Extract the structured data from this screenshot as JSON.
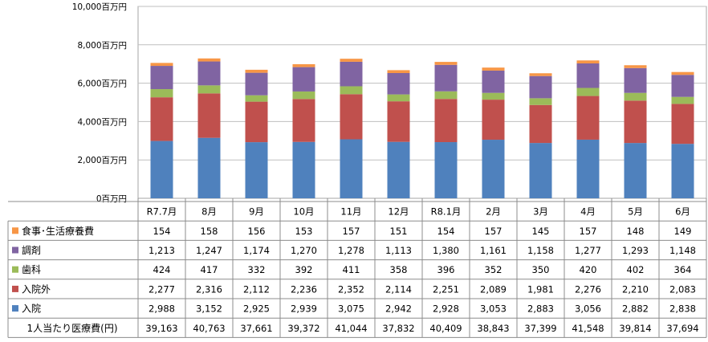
{
  "chart_data": {
    "type": "bar",
    "stacked": true,
    "categories": [
      "R7.7月",
      "8月",
      "9月",
      "10月",
      "11月",
      "12月",
      "R8.1月",
      "2月",
      "3月",
      "4月",
      "5月",
      "6月"
    ],
    "y_unit_suffix": "百万円",
    "y_ticks": [
      "0百万円",
      "2,000百万円",
      "4,000百万円",
      "6,000百万円",
      "8,000百万円",
      "10,000百万円"
    ],
    "ylim": [
      0,
      10000
    ],
    "ytick_step": 2000,
    "grid": "horizontal",
    "series": [
      {
        "name": "入院",
        "color": "#4F81BD",
        "values": [
          2988,
          3152,
          2925,
          2939,
          3075,
          2942,
          2928,
          3053,
          2883,
          3056,
          2882,
          2838
        ],
        "labels": [
          "2,988",
          "3,152",
          "2,925",
          "2,939",
          "3,075",
          "2,942",
          "2,928",
          "3,053",
          "2,883",
          "3,056",
          "2,882",
          "2,838"
        ]
      },
      {
        "name": "入院外",
        "color": "#C0504D",
        "values": [
          2277,
          2316,
          2112,
          2236,
          2352,
          2114,
          2251,
          2089,
          1981,
          2276,
          2210,
          2083
        ],
        "labels": [
          "2,277",
          "2,316",
          "2,112",
          "2,236",
          "2,352",
          "2,114",
          "2,251",
          "2,089",
          "1,981",
          "2,276",
          "2,210",
          "2,083"
        ]
      },
      {
        "name": "歯科",
        "color": "#9BBB59",
        "values": [
          424,
          417,
          332,
          392,
          411,
          358,
          396,
          352,
          350,
          420,
          402,
          364
        ],
        "labels": [
          "424",
          "417",
          "332",
          "392",
          "411",
          "358",
          "396",
          "352",
          "350",
          "420",
          "402",
          "364"
        ]
      },
      {
        "name": "調剤",
        "color": "#8064A2",
        "values": [
          1213,
          1247,
          1174,
          1270,
          1278,
          1113,
          1380,
          1161,
          1158,
          1277,
          1293,
          1148
        ],
        "labels": [
          "1,213",
          "1,247",
          "1,174",
          "1,270",
          "1,278",
          "1,113",
          "1,380",
          "1,161",
          "1,158",
          "1,277",
          "1,293",
          "1,148"
        ]
      },
      {
        "name": "食事･生活療養費",
        "color": "#F79646",
        "values": [
          154,
          158,
          156,
          153,
          157,
          151,
          154,
          157,
          145,
          157,
          148,
          149
        ],
        "labels": [
          "154",
          "158",
          "156",
          "153",
          "157",
          "151",
          "154",
          "157",
          "145",
          "157",
          "148",
          "149"
        ]
      }
    ],
    "table_rows_top_to_bottom": [
      "食事･生活療養費",
      "調剤",
      "歯科",
      "入院外",
      "入院"
    ],
    "per_capita": {
      "name": "1人当たり医療費(円)",
      "labels": [
        "39,163",
        "40,763",
        "37,661",
        "39,372",
        "41,044",
        "37,832",
        "40,409",
        "38,843",
        "37,399",
        "41,548",
        "39,814",
        "37,694"
      ]
    }
  }
}
